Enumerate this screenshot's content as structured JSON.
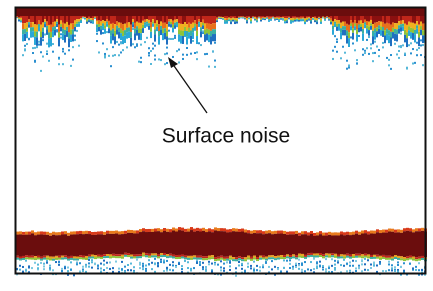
{
  "annotation": {
    "label": "Surface noise"
  }
}
